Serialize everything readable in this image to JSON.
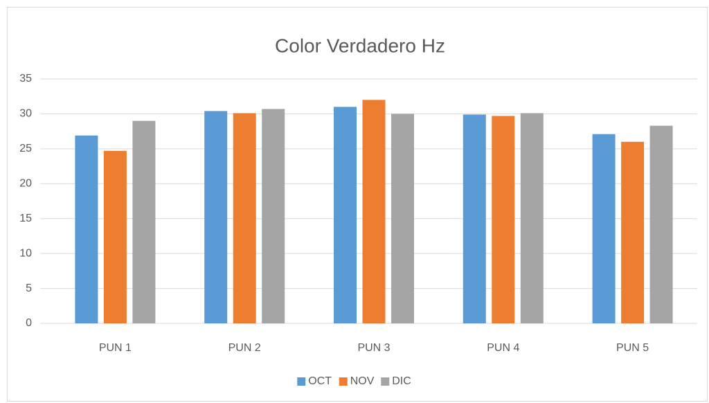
{
  "chart_data": {
    "type": "bar",
    "title": "Color Verdadero Hz",
    "categories": [
      "PUN 1",
      "PUN 2",
      "PUN 3",
      "PUN 4",
      "PUN 5"
    ],
    "series": [
      {
        "name": "OCT",
        "color": "#5b9bd5",
        "values": [
          26.9,
          30.4,
          31.0,
          29.9,
          27.1
        ]
      },
      {
        "name": "NOV",
        "color": "#ed7d31",
        "values": [
          24.7,
          30.1,
          32.0,
          29.7,
          26.0
        ]
      },
      {
        "name": "DIC",
        "color": "#a5a5a5",
        "values": [
          29.0,
          30.7,
          30.0,
          30.1,
          28.3
        ]
      }
    ],
    "ylim": [
      0,
      35
    ],
    "yticks": [
      0,
      5,
      10,
      15,
      20,
      25,
      30,
      35
    ],
    "grid": true,
    "legend": "bottom"
  }
}
